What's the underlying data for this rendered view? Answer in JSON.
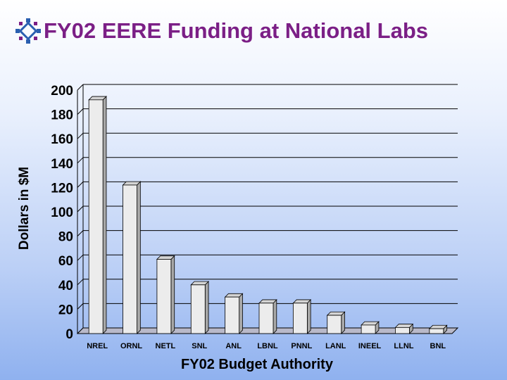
{
  "slide": {
    "title": "FY02 EERE Funding at National Labs",
    "logo_icon": "diamond-arrows-logo-icon"
  },
  "colors": {
    "title": "#7b1f86",
    "bar_front": "#ececec",
    "bar_side": "#a8a8a8",
    "bar_top": "#d4d4d4",
    "gridline": "#000000"
  },
  "chart_data": {
    "type": "bar",
    "title": "",
    "xlabel": "FY02 Budget Authority",
    "ylabel": "Dollars in $M",
    "ylim": [
      0,
      200
    ],
    "yticks": [
      0,
      20,
      40,
      60,
      80,
      100,
      120,
      140,
      160,
      180,
      200
    ],
    "grid": true,
    "categories": [
      "NREL",
      "ORNL",
      "NETL",
      "SNL",
      "ANL",
      "LBNL",
      "PNNL",
      "LANL",
      "INEEL",
      "LLNL",
      "BNL"
    ],
    "values": [
      192,
      122,
      61,
      40,
      30,
      25,
      25,
      15,
      7,
      5,
      4
    ]
  }
}
